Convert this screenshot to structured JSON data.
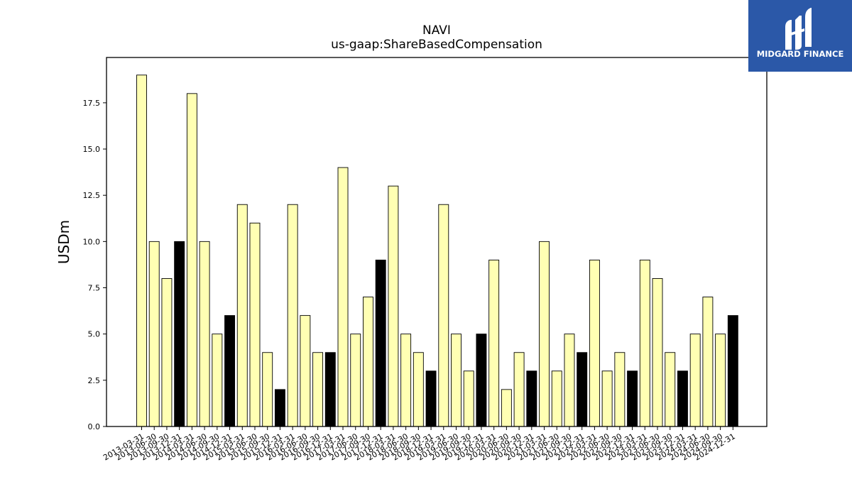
{
  "logo": {
    "text": "MIDGARD FINANCE",
    "bg_color": "#2b58a8"
  },
  "chart_data": {
    "type": "bar",
    "title": "NAVI",
    "subtitle": "us-gaap:ShareBasedCompensation",
    "ylabel": "USDm",
    "xlabel": "",
    "ylim": [
      0,
      19.95
    ],
    "yticks": [
      "0.0",
      "2.5",
      "5.0",
      "7.5",
      "10.0",
      "12.5",
      "15.0",
      "17.5"
    ],
    "grid": false,
    "colors": {
      "quarter": "#ffffb3",
      "year_end": "#000000",
      "edge": "#000000"
    },
    "categories": [
      "2013-03-31",
      "2013-06-30",
      "2013-09-30",
      "2013-12-31",
      "2014-03-31",
      "2014-06-30",
      "2014-09-30",
      "2014-12-31",
      "2015-03-31",
      "2015-06-30",
      "2015-09-30",
      "2015-12-31",
      "2016-03-31",
      "2016-06-30",
      "2016-09-30",
      "2016-12-31",
      "2017-03-31",
      "2017-06-30",
      "2017-09-30",
      "2017-12-31",
      "2018-03-31",
      "2018-06-30",
      "2018-09-30",
      "2018-12-31",
      "2019-03-31",
      "2019-06-30",
      "2019-09-30",
      "2019-12-31",
      "2020-03-31",
      "2020-06-30",
      "2020-09-30",
      "2020-12-31",
      "2021-03-31",
      "2021-06-30",
      "2021-09-30",
      "2021-12-31",
      "2022-03-31",
      "2022-06-30",
      "2022-09-30",
      "2022-12-31",
      "2023-03-31",
      "2023-06-30",
      "2023-09-30",
      "2023-12-31",
      "2024-03-31",
      "2024-06-30",
      "2024-09-30",
      "2024-12-31"
    ],
    "values": [
      19,
      10,
      8,
      10,
      18,
      10,
      5,
      6,
      12,
      11,
      4,
      2,
      12,
      6,
      4,
      4,
      14,
      5,
      7,
      9,
      13,
      5,
      4,
      3,
      12,
      5,
      3,
      5,
      9,
      2,
      4,
      3,
      10,
      3,
      5,
      4,
      9,
      3,
      4,
      3,
      9,
      8,
      4,
      3,
      5,
      7,
      5,
      6
    ]
  }
}
